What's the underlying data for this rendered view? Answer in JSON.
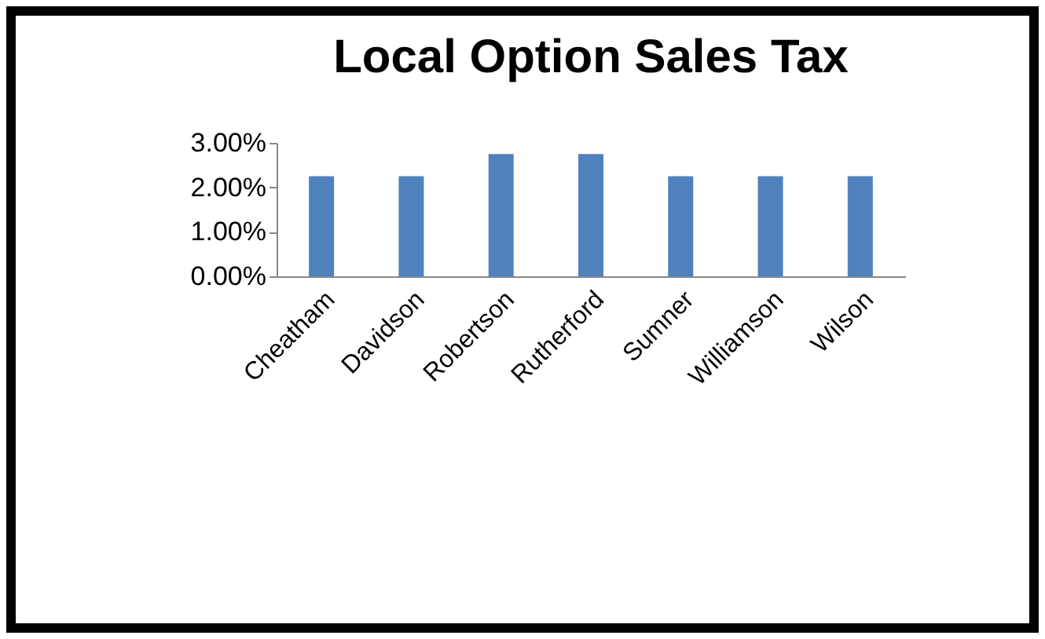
{
  "chart_data": {
    "type": "bar",
    "title": "Local Option Sales Tax",
    "categories": [
      "Cheatham",
      "Davidson",
      "Robertson",
      "Rutherford",
      "Sumner",
      "Williamson",
      "Wilson"
    ],
    "values": [
      2.25,
      2.25,
      2.75,
      2.75,
      2.25,
      2.25,
      2.25
    ],
    "color": "#4f81bd",
    "ylim": [
      0,
      3
    ],
    "yticks": [
      {
        "value": 0,
        "label": "0.00%"
      },
      {
        "value": 1,
        "label": "1.00%"
      },
      {
        "value": 2,
        "label": "2.00%"
      },
      {
        "value": 3,
        "label": "3.00%"
      }
    ],
    "grid": false
  }
}
